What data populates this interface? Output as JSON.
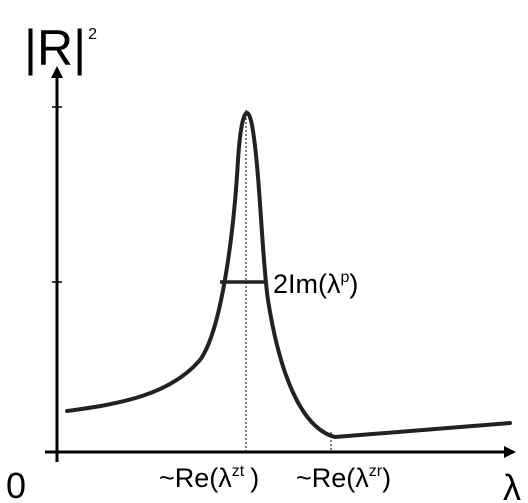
{
  "chart_data": {
    "type": "line",
    "ylabel": "|R|",
    "ylabel_sup": "2",
    "xlabel": "λ",
    "origin_label": "0",
    "width_annotation": {
      "text": "2Im(λ",
      "sup": "p",
      "close": ")"
    },
    "x_markers": [
      {
        "prefix": "~Re(λ",
        "sup": "zt",
        "close": ")"
      },
      {
        "prefix": "~Re(λ",
        "sup": "zr",
        "close": ")"
      }
    ],
    "colors": {
      "curve": "#222222",
      "axis": "#000000"
    }
  }
}
